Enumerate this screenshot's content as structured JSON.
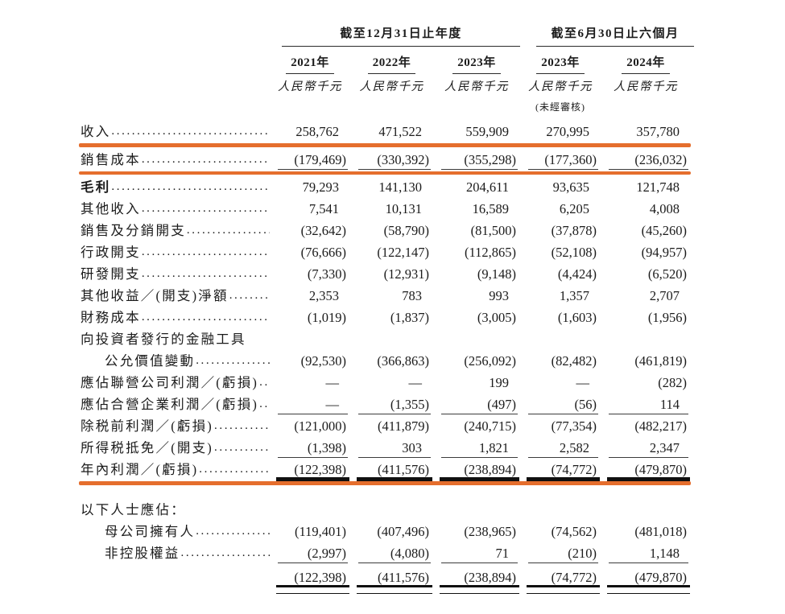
{
  "table": {
    "header": {
      "annual_group": "截至12月31日止年度",
      "interim_group": "截至6月30日止六個月",
      "years": [
        "2021年",
        "2022年",
        "2023年",
        "2023年",
        "2024年"
      ],
      "unit": "人民幣千元",
      "unaudited_note": "(未經審核)"
    },
    "highlight_color": "#E56E2D",
    "rows": [
      {
        "label": "收入",
        "leaders": true,
        "values": [
          "258,762",
          "471,522",
          "559,909",
          "270,995",
          "357,780"
        ],
        "highlight": true
      },
      {
        "label": "銷售成本",
        "leaders": true,
        "values": [
          "(179,469)",
          "(330,392)",
          "(355,298)",
          "(177,360)",
          "(236,032)"
        ],
        "rule": "thin",
        "highlight": true
      },
      {
        "label": "毛利",
        "bold": true,
        "leaders": true,
        "values": [
          "79,293",
          "141,130",
          "204,611",
          "93,635",
          "121,748"
        ]
      },
      {
        "label": "其他收入",
        "leaders": true,
        "values": [
          "7,541",
          "10,131",
          "16,589",
          "6,205",
          "4,008"
        ]
      },
      {
        "label": "銷售及分銷開支",
        "leaders": true,
        "values": [
          "(32,642)",
          "(58,790)",
          "(81,500)",
          "(37,878)",
          "(45,260)"
        ]
      },
      {
        "label": "行政開支",
        "leaders": true,
        "values": [
          "(76,666)",
          "(122,147)",
          "(112,865)",
          "(52,108)",
          "(94,957)"
        ]
      },
      {
        "label": "研發開支",
        "leaders": true,
        "values": [
          "(7,330)",
          "(12,931)",
          "(9,148)",
          "(4,424)",
          "(6,520)"
        ]
      },
      {
        "label": "其他收益／(開支)淨額",
        "leaders": true,
        "values": [
          "2,353",
          "783",
          "993",
          "1,357",
          "2,707"
        ]
      },
      {
        "label": "財務成本",
        "leaders": true,
        "values": [
          "(1,019)",
          "(1,837)",
          "(3,005)",
          "(1,603)",
          "(1,956)"
        ]
      },
      {
        "label": "向投資者發行的金融工具",
        "leaders": false,
        "values": null
      },
      {
        "label": "公允價值變動",
        "indent": 1,
        "leaders": true,
        "values": [
          "(92,530)",
          "(366,863)",
          "(256,092)",
          "(82,482)",
          "(461,819)"
        ]
      },
      {
        "label": "應佔聯營公司利潤／(虧損)",
        "leaders": true,
        "values": [
          "—",
          "—",
          "199",
          "—",
          "(282)"
        ]
      },
      {
        "label": "應佔合營企業利潤／(虧損)",
        "leaders": true,
        "values": [
          "—",
          "(1,355)",
          "(497)",
          "(56)",
          "114"
        ],
        "rule": "thin"
      },
      {
        "label": "除税前利潤／(虧損)",
        "leaders": true,
        "values": [
          "(121,000)",
          "(411,879)",
          "(240,715)",
          "(77,354)",
          "(482,217)"
        ]
      },
      {
        "label": "所得税抵免／(開支)",
        "leaders": true,
        "values": [
          "(1,398)",
          "303",
          "1,821",
          "2,582",
          "2,347"
        ],
        "rule": "thin"
      },
      {
        "label": "年內利潤／(虧損)",
        "leaders": true,
        "values": [
          "(122,398)",
          "(411,576)",
          "(238,894)",
          "(74,772)",
          "(479,870)"
        ],
        "rule": "thick",
        "highlight": true
      },
      {
        "type": "spacer"
      },
      {
        "label": "以下人士應佔：",
        "leaders": false,
        "values": null
      },
      {
        "label": "母公司擁有人",
        "indent": 1,
        "leaders": true,
        "values": [
          "(119,401)",
          "(407,496)",
          "(238,965)",
          "(74,562)",
          "(481,018)"
        ]
      },
      {
        "label": "非控股權益",
        "indent": 1,
        "leaders": true,
        "values": [
          "(2,997)",
          "(4,080)",
          "71",
          "(210)",
          "1,148"
        ],
        "rule": "thin"
      },
      {
        "label": "",
        "leaders": false,
        "values": [
          "(122,398)",
          "(411,576)",
          "(238,894)",
          "(74,772)",
          "(479,870)"
        ],
        "rule": "double",
        "total": true
      }
    ]
  }
}
